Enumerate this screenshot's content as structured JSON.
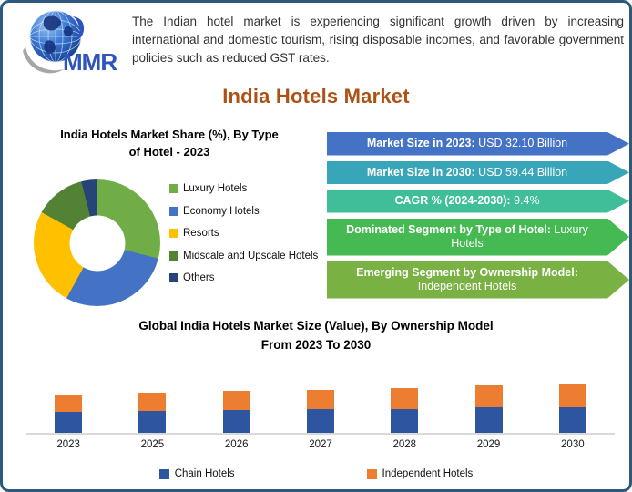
{
  "logo": {
    "text": "MMR"
  },
  "description": "The Indian hotel market is experiencing significant growth driven by increasing international and domestic tourism, rising disposable incomes, and favorable government policies such as reduced GST rates.",
  "main_title": "India Hotels Market",
  "donut_section": {
    "title_line1": "India Hotels Market Share (%), By Type",
    "title_line2": "of Hotel - 2023"
  },
  "bar_section": {
    "title_line1": "Global India Hotels Market Size (Value), By Ownership Model",
    "title_line2": "From 2023 To 2030"
  },
  "stats_banners": [
    {
      "label": "Market Size in 2023:",
      "value": "USD 32.10 Billion",
      "color": "#4472C4"
    },
    {
      "label": "Market Size in 2030:",
      "value": "USD 59.44 Billion",
      "color": "#38A6B8"
    },
    {
      "label": "CAGR % (2024-2030):",
      "value": "9.4%",
      "color": "#3FBE99"
    },
    {
      "label": "Dominated Segment by Type of Hotel:",
      "value": "Luxury Hotels",
      "color": "#46BA52"
    },
    {
      "label": "Emerging Segment by Ownership Model:",
      "value": "Independent Hotels",
      "color": "#79B143"
    }
  ],
  "chart_data": [
    {
      "type": "pie",
      "donut": true,
      "title": "India Hotels Market Share (%), By Type of Hotel - 2023",
      "legend_position": "right",
      "slices": [
        {
          "label": "Luxury Hotels",
          "value": 29,
          "color": "#70AD47"
        },
        {
          "label": "Economy Hotels",
          "value": 29,
          "color": "#4472C4"
        },
        {
          "label": "Resorts",
          "value": 25,
          "color": "#FFC000"
        },
        {
          "label": "Midscale and Upscale Hotels",
          "value": 13,
          "color": "#548235"
        },
        {
          "label": "Others",
          "value": 4,
          "color": "#264478"
        }
      ]
    },
    {
      "type": "bar",
      "stacked": true,
      "title": "Global India Hotels Market Size (Value), By Ownership Model From 2023 To 2030",
      "categories": [
        "2023",
        "2025",
        "2026",
        "2027",
        "2028",
        "2029",
        "2030"
      ],
      "series": [
        {
          "name": "Chain Hotels",
          "color": "#2E55A0",
          "values": [
            23,
            24,
            25.5,
            26.5,
            27,
            28.5,
            28.5
          ]
        },
        {
          "name": "Independent Hotels",
          "color": "#ED7D31",
          "values": [
            19,
            21,
            21,
            21,
            23,
            24.5,
            25.5
          ]
        }
      ],
      "ylabel": "",
      "xlabel": "",
      "axis_labels_shown": false,
      "legend_position": "bottom",
      "note": "No y-axis shown; values are relative bar heights (arbitrary units)"
    }
  ]
}
